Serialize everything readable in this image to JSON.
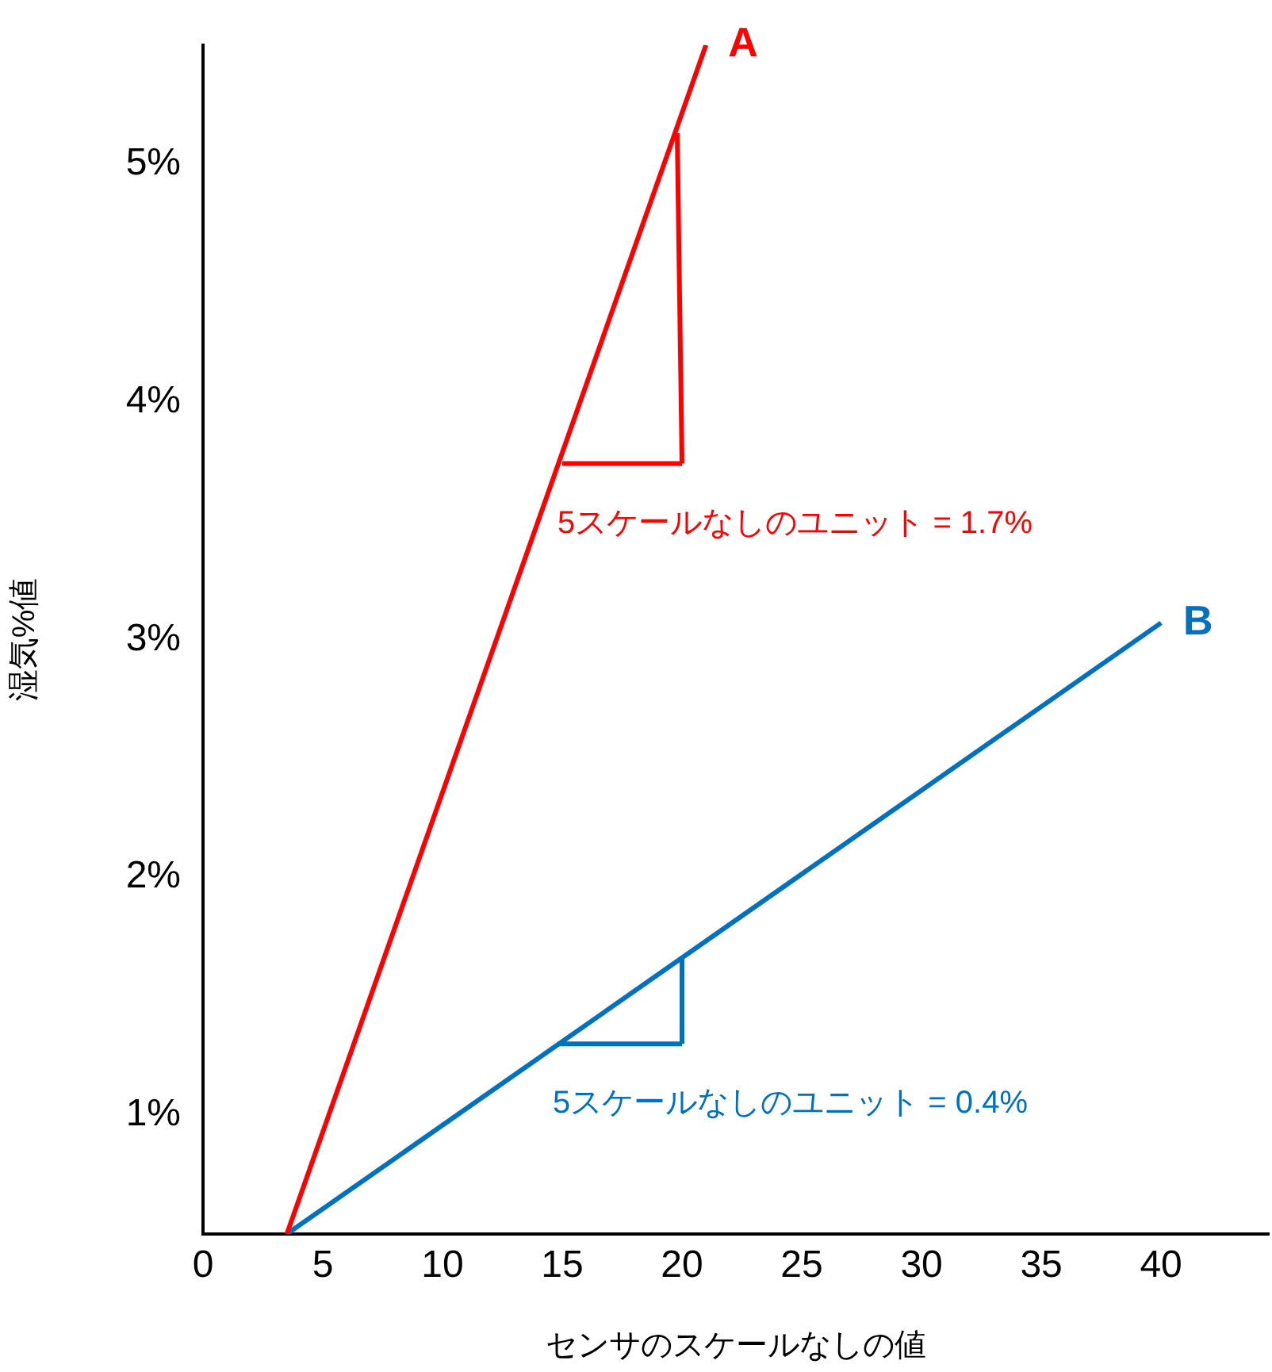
{
  "chart_data": {
    "type": "line",
    "xlabel": "センサのスケールなしの値",
    "ylabel": "湿気%値",
    "xlim": [
      0,
      44.5
    ],
    "ylim": [
      0.5,
      5.5
    ],
    "xticks": [
      0,
      5,
      10,
      15,
      20,
      25,
      30,
      35,
      40
    ],
    "yticks": [
      {
        "value": 1,
        "label": "1%"
      },
      {
        "value": 2,
        "label": "2%"
      },
      {
        "value": 3,
        "label": "3%"
      },
      {
        "value": 4,
        "label": "4%"
      },
      {
        "value": 5,
        "label": "5%"
      }
    ],
    "grid": false,
    "legend": false,
    "marker": "none",
    "line_style": "solid",
    "series": [
      {
        "name": "A",
        "color": "#ff0000",
        "x": [
          3.5,
          21
        ],
        "values": [
          0.5,
          5.5
        ]
      },
      {
        "name": "B",
        "color": "#0070c0",
        "x": [
          3.5,
          40
        ],
        "values": [
          0.5,
          3.07
        ]
      },
      {
        "type": "line",
        "color": "#ff0000",
        "x": [
          15,
          20
        ],
        "values": [
          3.74,
          3.74
        ]
      },
      {
        "type": "line",
        "color": "#ff0000",
        "x": [
          20,
          19.8
        ],
        "values": [
          3.74,
          5.13
        ]
      },
      {
        "type": "line",
        "color": "#0070c0",
        "x": [
          14.8,
          20
        ],
        "values": [
          1.3,
          1.3
        ]
      },
      {
        "type": "line",
        "color": "#0070c0",
        "x": [
          20,
          20
        ],
        "values": [
          1.3,
          1.66
        ]
      }
    ],
    "annotations": [
      "5スケールなしのユニット = 1.7%",
      "5スケールなしのユニット = 0.4%"
    ]
  }
}
